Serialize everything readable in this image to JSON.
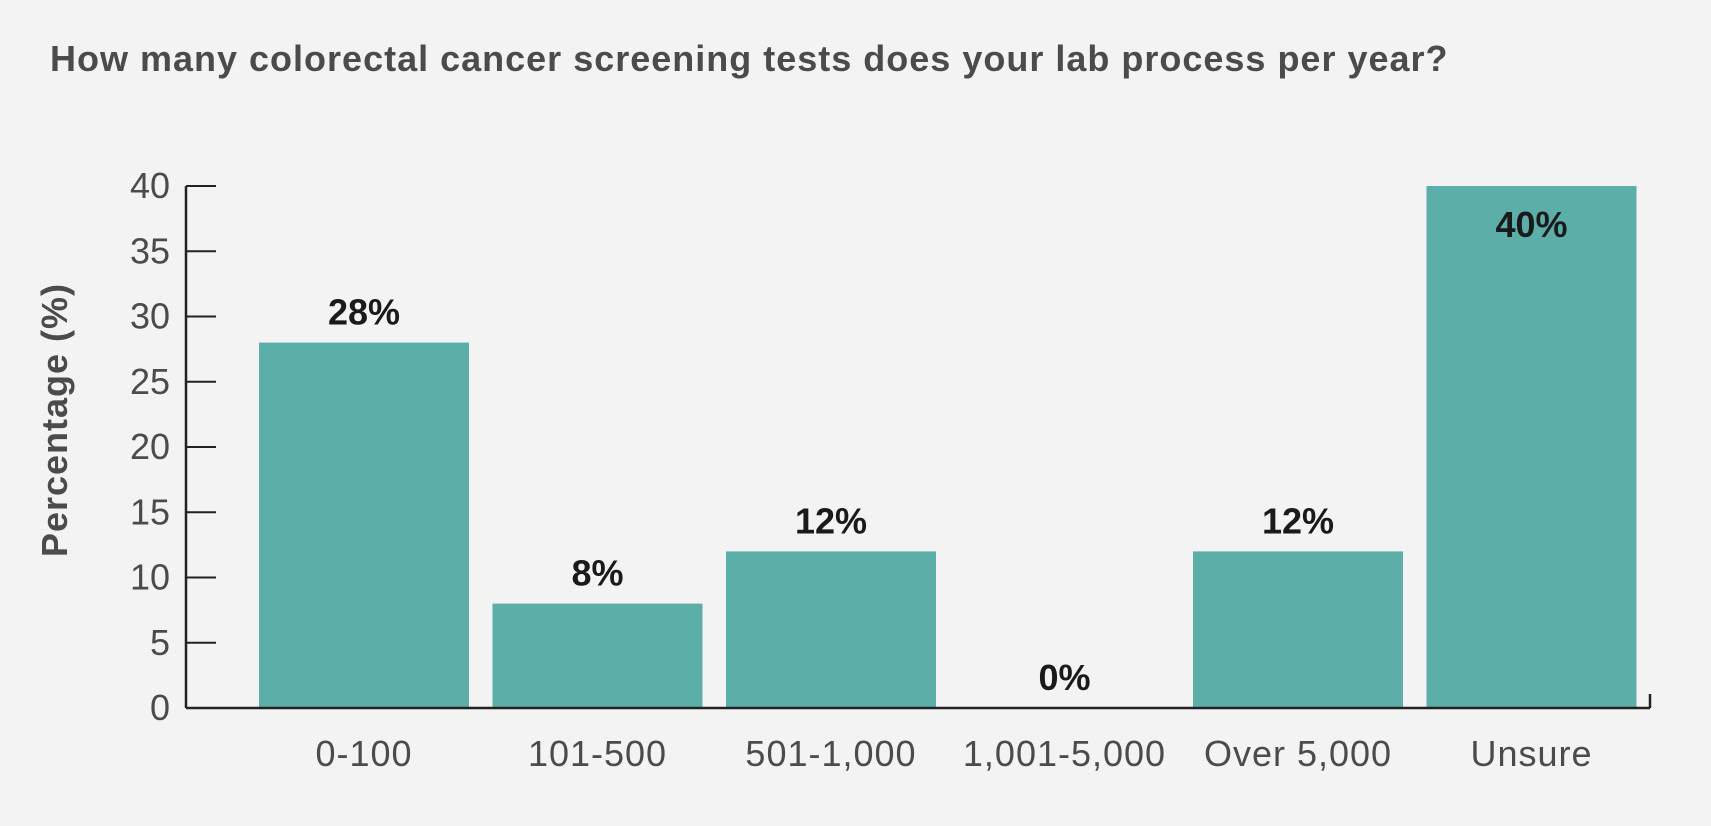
{
  "chart_data": {
    "type": "bar",
    "title": "How many colorectal cancer screening tests does your lab process per year?",
    "xlabel": "",
    "ylabel": "Percentage (%)",
    "ylim": [
      0,
      40
    ],
    "yticks": [
      0,
      5,
      10,
      15,
      20,
      25,
      30,
      35,
      40
    ],
    "categories": [
      "0-100",
      "101-500",
      "501-1,000",
      "1,001-5,000",
      "Over 5,000",
      "Unsure"
    ],
    "values": [
      28,
      8,
      12,
      0,
      12,
      40
    ],
    "data_labels": [
      "28%",
      "8%",
      "12%",
      "0%",
      "12%",
      "40%"
    ],
    "grid": false,
    "legend": "none",
    "colors": {
      "bar": "#5bafa8",
      "axis": "#222222",
      "background": "#f3f3f3"
    }
  }
}
